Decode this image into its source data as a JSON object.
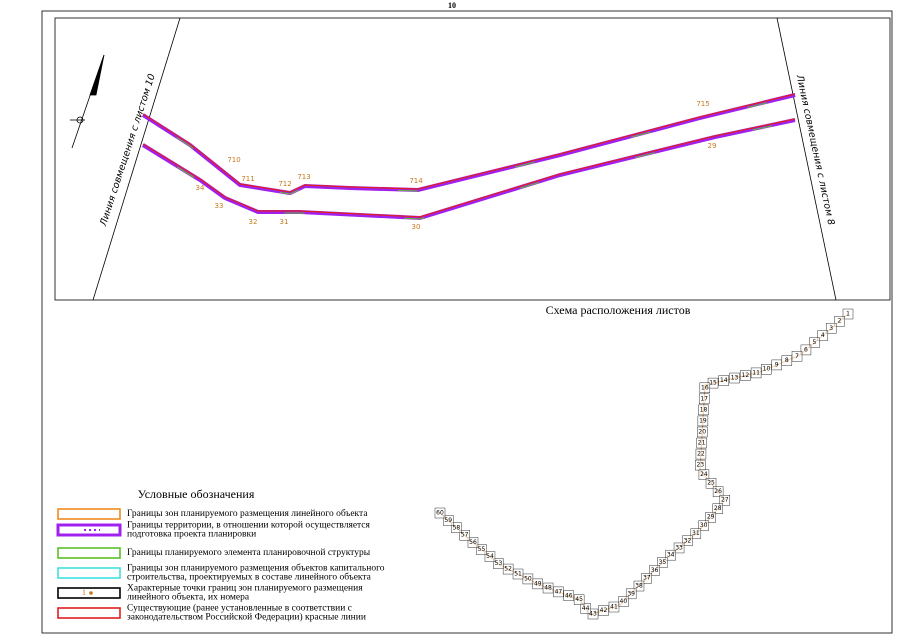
{
  "page_number": "10",
  "sheet": {
    "left_label": "Линия совмещения с листом 10",
    "right_label": "Линия совмещения с листом 8",
    "points": [
      "710",
      "711",
      "712",
      "713",
      "714",
      "715",
      "29",
      "30",
      "31",
      "32",
      "33",
      "34"
    ]
  },
  "scheme": {
    "title": "Схема расположения листов",
    "sheets": [
      "1",
      "2",
      "3",
      "4",
      "5",
      "6",
      "7",
      "8",
      "9",
      "10",
      "11",
      "12",
      "13",
      "14",
      "15",
      "16",
      "17",
      "18",
      "19",
      "20",
      "21",
      "22",
      "23",
      "24",
      "25",
      "26",
      "27",
      "28",
      "29",
      "30",
      "31",
      "32",
      "33",
      "34",
      "35",
      "36",
      "37",
      "38",
      "39",
      "40",
      "41",
      "42",
      "43",
      "44",
      "45",
      "46",
      "47",
      "48",
      "49",
      "50",
      "51",
      "52",
      "53",
      "54",
      "55",
      "56",
      "57",
      "58",
      "59",
      "60"
    ]
  },
  "legend": {
    "title": "Условные обозначения",
    "sample_label": "1",
    "items": [
      {
        "text": "Границы зон планируемого размещения линейного объекта"
      },
      {
        "text": "Границы территории, в отношении которой осуществляется подготовка проекта планировки"
      },
      {
        "text": "Границы планируемого элемента планировочной структуры"
      },
      {
        "text": "Границы зон планируемого размещения объектов капитального строительства, проектируемых в составе линейного объекта"
      },
      {
        "text": "Характерные точки границ зон планируемого размещения линейного объекта, их номера"
      },
      {
        "text": "Существующие (ранее установленные в соответствии с законодательством Российской Федерации) красные линии"
      }
    ]
  }
}
